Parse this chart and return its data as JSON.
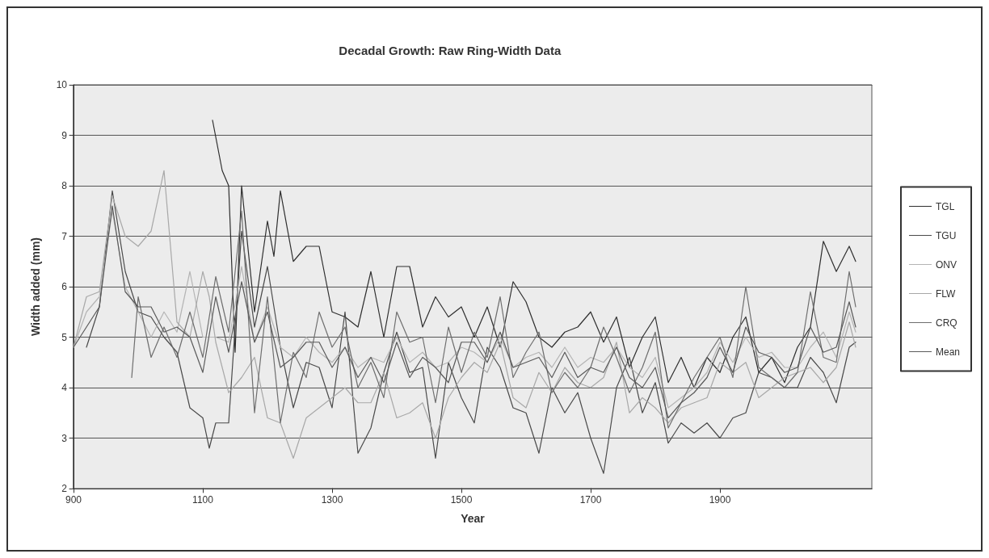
{
  "chart_data": {
    "type": "line",
    "title": "Decadal Growth: Raw Ring-Width Data",
    "xlabel": "Year",
    "ylabel": "Width added (mm)",
    "xlim": [
      900,
      2135
    ],
    "xticks": [
      900,
      1100,
      1300,
      1500,
      1700,
      1900
    ],
    "ylim": [
      2,
      10
    ],
    "yticks": [
      2,
      3,
      4,
      5,
      6,
      7,
      8,
      9,
      10
    ],
    "grid": "y",
    "legend": "right",
    "marker": "none",
    "line_style": "solid",
    "series": [
      {
        "name": "TGL",
        "color": "#2e2e2e",
        "x": [
          1115,
          1130,
          1140,
          1150,
          1160,
          1180,
          1200,
          1210,
          1220,
          1240,
          1260,
          1280,
          1300,
          1320,
          1340,
          1360,
          1380,
          1400,
          1420,
          1440,
          1460,
          1480,
          1500,
          1520,
          1540,
          1560,
          1580,
          1600,
          1620,
          1640,
          1660,
          1680,
          1700,
          1720,
          1740,
          1760,
          1780,
          1800,
          1820,
          1840,
          1860,
          1880,
          1900,
          1920,
          1940,
          1960,
          1980,
          2000,
          2020,
          2040,
          2060,
          2080,
          2100,
          2110
        ],
        "values": [
          9.3,
          8.3,
          8.0,
          4.7,
          8.0,
          5.5,
          7.3,
          6.6,
          7.9,
          6.5,
          6.8,
          6.8,
          5.5,
          5.4,
          5.2,
          6.3,
          5.0,
          6.4,
          6.4,
          5.2,
          5.8,
          5.4,
          5.6,
          5.0,
          5.6,
          4.8,
          6.1,
          5.7,
          5.0,
          4.8,
          5.1,
          5.2,
          5.5,
          4.9,
          5.4,
          4.4,
          5.0,
          5.4,
          4.1,
          4.6,
          4.0,
          4.6,
          4.3,
          5.0,
          5.4,
          4.3,
          4.6,
          4.1,
          4.8,
          5.2,
          6.9,
          6.3,
          6.8,
          6.5
        ]
      },
      {
        "name": "TGU",
        "color": "#4a4a4a",
        "x": [
          920,
          940,
          960,
          980,
          1000,
          1020,
          1040,
          1060,
          1080,
          1100,
          1110,
          1120,
          1140,
          1160,
          1180,
          1200,
          1220,
          1240,
          1260,
          1280,
          1300,
          1320,
          1340,
          1360,
          1380,
          1400,
          1420,
          1440,
          1460,
          1480,
          1500,
          1520,
          1540,
          1560,
          1580,
          1600,
          1620,
          1640,
          1660,
          1680,
          1700,
          1720,
          1740,
          1760,
          1780,
          1800,
          1820,
          1840,
          1860,
          1880,
          1900,
          1920,
          1940,
          1960,
          1980,
          2000,
          2020,
          2040,
          2060,
          2080,
          2100,
          2110
        ],
        "values": [
          4.8,
          5.6,
          7.9,
          6.3,
          5.5,
          5.4,
          5.0,
          4.7,
          3.6,
          3.4,
          2.8,
          3.3,
          3.3,
          7.1,
          5.2,
          6.4,
          4.8,
          3.6,
          4.5,
          4.4,
          3.6,
          5.5,
          2.7,
          3.2,
          4.3,
          5.1,
          4.3,
          4.4,
          2.6,
          4.5,
          3.8,
          3.3,
          4.8,
          4.4,
          3.6,
          3.5,
          2.7,
          4.0,
          3.5,
          3.9,
          3.0,
          2.3,
          4.0,
          4.6,
          3.5,
          4.1,
          2.9,
          3.3,
          3.1,
          3.3,
          3.0,
          3.4,
          3.5,
          4.3,
          4.2,
          4.0,
          4.0,
          4.6,
          4.3,
          3.7,
          4.8,
          4.9
        ]
      },
      {
        "name": "ONV",
        "color": "#b4b4b4",
        "x": [
          900,
          920,
          940,
          960,
          980,
          1000,
          1020,
          1040,
          1060,
          1080,
          1100,
          1120,
          1140,
          1160,
          1180,
          1200,
          1220,
          1240,
          1260,
          1280,
          1300,
          1320,
          1340,
          1360,
          1380,
          1400,
          1420,
          1440,
          1460,
          1480,
          1500,
          1520,
          1540,
          1560,
          1580,
          1600,
          1620,
          1640,
          1660,
          1680,
          1700,
          1720,
          1740,
          1760,
          1780,
          1800,
          1820,
          1840,
          1860,
          1880,
          1900,
          1920,
          1940,
          1960,
          1980,
          2000,
          2020,
          2040,
          2060,
          2080,
          2100,
          2110
        ],
        "values": [
          4.8,
          5.5,
          5.8,
          7.5,
          6.0,
          5.5,
          5.0,
          5.5,
          5.1,
          6.3,
          5.0,
          5.0,
          4.9,
          6.4,
          4.9,
          5.6,
          4.8,
          4.6,
          5.0,
          4.7,
          4.5,
          4.8,
          4.4,
          4.6,
          4.5,
          5.0,
          4.5,
          4.7,
          4.4,
          4.5,
          4.8,
          4.7,
          4.5,
          5.0,
          4.4,
          4.6,
          4.7,
          4.4,
          4.8,
          4.4,
          4.6,
          4.5,
          4.8,
          4.4,
          4.2,
          4.6,
          3.6,
          3.8,
          4.0,
          4.3,
          4.9,
          4.5,
          5.0,
          4.6,
          4.7,
          4.4,
          4.4,
          4.8,
          5.1,
          4.6,
          5.5,
          5.1
        ]
      },
      {
        "name": "FLW",
        "color": "#a8a8a8",
        "x": [
          900,
          920,
          940,
          960,
          980,
          1000,
          1020,
          1040,
          1060,
          1080,
          1100,
          1110,
          1120,
          1140,
          1160,
          1180,
          1200,
          1220,
          1240,
          1260,
          1280,
          1300,
          1320,
          1340,
          1360,
          1380,
          1400,
          1420,
          1440,
          1460,
          1480,
          1500,
          1520,
          1540,
          1560,
          1580,
          1600,
          1620,
          1640,
          1660,
          1680,
          1700,
          1720,
          1740,
          1760,
          1780,
          1800,
          1820,
          1840,
          1860,
          1880,
          1900,
          1920,
          1940,
          1960,
          1980,
          2000,
          2020,
          2040,
          2060,
          2080,
          2100,
          2110
        ],
        "values": [
          4.8,
          5.8,
          5.9,
          7.8,
          7.0,
          6.8,
          7.1,
          8.3,
          5.3,
          5.0,
          6.3,
          5.8,
          4.9,
          3.9,
          4.2,
          4.6,
          3.4,
          3.3,
          2.6,
          3.4,
          3.6,
          3.8,
          4.0,
          3.7,
          3.7,
          4.3,
          3.4,
          3.5,
          3.7,
          3.0,
          3.8,
          4.2,
          4.5,
          4.3,
          4.9,
          3.8,
          3.6,
          4.3,
          3.9,
          4.4,
          4.1,
          4.0,
          4.2,
          4.9,
          3.5,
          3.8,
          3.6,
          3.3,
          3.6,
          3.7,
          3.8,
          4.5,
          4.3,
          4.5,
          3.8,
          4.0,
          4.2,
          4.3,
          4.4,
          4.1,
          4.4,
          5.3,
          4.8
        ]
      },
      {
        "name": "CRQ",
        "color": "#6e6e6e",
        "x": [
          990,
          1000,
          1020,
          1040,
          1060,
          1080,
          1100,
          1120,
          1140,
          1160,
          1180,
          1200,
          1220,
          1240,
          1260,
          1280,
          1300,
          1320,
          1340,
          1360,
          1380,
          1400,
          1420,
          1440,
          1460,
          1480,
          1500,
          1520,
          1540,
          1560,
          1580,
          1600,
          1620,
          1640,
          1660,
          1680,
          1700,
          1720,
          1740,
          1760,
          1780,
          1800,
          1820,
          1840,
          1860,
          1880,
          1900,
          1920,
          1940,
          1960,
          1980,
          2000,
          2020,
          2040,
          2060,
          2080,
          2100,
          2110
        ],
        "values": [
          4.2,
          5.8,
          4.6,
          5.2,
          4.6,
          5.5,
          4.6,
          6.2,
          5.1,
          7.5,
          3.5,
          5.8,
          3.3,
          4.7,
          4.2,
          5.5,
          4.8,
          5.2,
          4.0,
          4.5,
          3.8,
          5.5,
          4.9,
          5.0,
          3.7,
          5.2,
          4.3,
          5.1,
          4.6,
          5.8,
          4.2,
          4.7,
          5.1,
          3.9,
          4.3,
          4.0,
          4.4,
          5.2,
          4.6,
          3.9,
          4.4,
          5.1,
          3.2,
          3.7,
          4.2,
          4.6,
          5.0,
          4.2,
          6.0,
          4.4,
          4.2,
          4.0,
          4.3,
          5.9,
          4.6,
          4.5,
          6.3,
          5.6
        ]
      },
      {
        "name": "Mean",
        "color": "#5a5a5a",
        "x": [
          900,
          920,
          940,
          960,
          980,
          1000,
          1020,
          1040,
          1060,
          1080,
          1100,
          1120,
          1140,
          1160,
          1180,
          1200,
          1220,
          1240,
          1260,
          1280,
          1300,
          1320,
          1340,
          1360,
          1380,
          1400,
          1420,
          1440,
          1460,
          1480,
          1500,
          1520,
          1540,
          1560,
          1580,
          1600,
          1620,
          1640,
          1660,
          1680,
          1700,
          1720,
          1740,
          1760,
          1780,
          1800,
          1820,
          1840,
          1860,
          1880,
          1900,
          1920,
          1940,
          1960,
          1980,
          2000,
          2020,
          2040,
          2060,
          2080,
          2100,
          2110
        ],
        "values": [
          4.8,
          5.2,
          5.6,
          7.6,
          5.9,
          5.6,
          5.6,
          5.1,
          5.2,
          5.0,
          4.3,
          5.8,
          4.7,
          6.1,
          4.9,
          5.5,
          4.4,
          4.6,
          4.9,
          4.9,
          4.4,
          4.8,
          4.2,
          4.6,
          4.1,
          4.9,
          4.2,
          4.6,
          4.4,
          4.1,
          4.9,
          4.9,
          4.5,
          5.1,
          4.4,
          4.5,
          4.6,
          4.2,
          4.7,
          4.2,
          4.4,
          4.3,
          4.8,
          4.2,
          4.0,
          4.4,
          3.4,
          3.7,
          3.9,
          4.2,
          4.8,
          4.3,
          5.2,
          4.7,
          4.6,
          4.3,
          4.4,
          5.2,
          4.7,
          4.8,
          5.7,
          5.2
        ]
      }
    ]
  }
}
